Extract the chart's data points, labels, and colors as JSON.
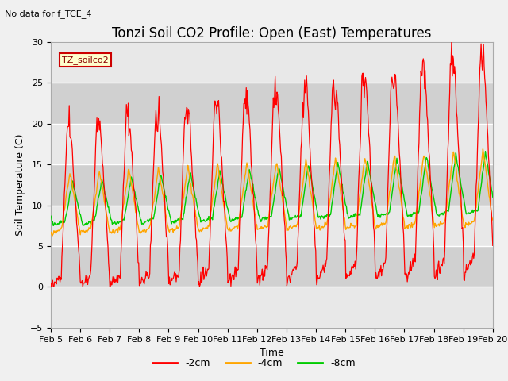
{
  "title": "Tonzi Soil CO2 Profile: Open (East) Temperatures",
  "suptitle": "No data for f_TCE_4",
  "ylabel": "Soil Temperature (C)",
  "xlabel": "Time",
  "xlim_days": [
    5,
    20
  ],
  "ylim": [
    -5,
    30
  ],
  "yticks": [
    -5,
    0,
    5,
    10,
    15,
    20,
    25,
    30
  ],
  "xtick_labels": [
    "Feb 5",
    "Feb 6",
    "Feb 7",
    "Feb 8",
    "Feb 9",
    "Feb 10",
    "Feb 11",
    "Feb 12",
    "Feb 13",
    "Feb 14",
    "Feb 15",
    "Feb 16",
    "Feb 17",
    "Feb 18",
    "Feb 19",
    "Feb 20"
  ],
  "legend_label": "TZ_soilco2",
  "series_labels": [
    "-2cm",
    "-4cm",
    "-8cm"
  ],
  "series_colors": [
    "#ff0000",
    "#ffa500",
    "#00cc00"
  ],
  "background_color": "#f0f0f0",
  "plot_background": "#e0e0e0",
  "grid_stripe_dark": "#d0d0d0",
  "grid_stripe_light": "#e8e8e8",
  "title_fontsize": 12,
  "label_fontsize": 9,
  "tick_fontsize": 8
}
